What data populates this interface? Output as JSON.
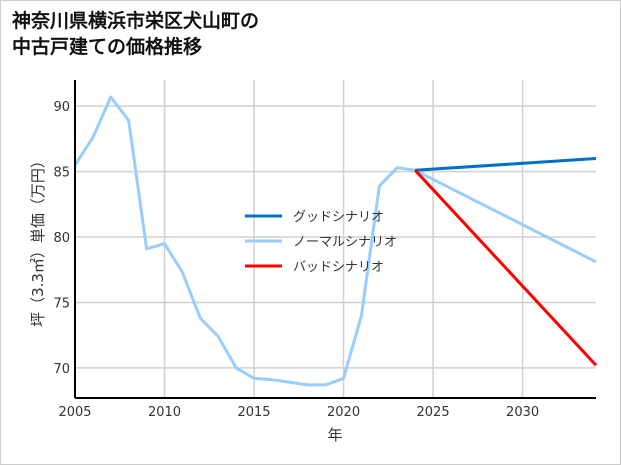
{
  "chart_data": {
    "type": "line",
    "title": "神奈川県横浜市栄区犬山町の\n中古戸建ての価格推移",
    "xlabel": "年",
    "ylabel": "坪（3.3㎡）単価（万円）",
    "xlim": [
      2005,
      2034.1
    ],
    "ylim": [
      67.7,
      92.0
    ],
    "xticks": [
      2005,
      2010,
      2015,
      2020,
      2025,
      2030
    ],
    "yticks": [
      70,
      75,
      80,
      85,
      90
    ],
    "grid": true,
    "legend_position": "center",
    "series": [
      {
        "name": "グッドシナリオ",
        "color": "#0070C8",
        "x": [
          2024,
          2034.1
        ],
        "y": [
          85.1,
          86.0
        ]
      },
      {
        "name": "ノーマルシナリオ",
        "color": "#99CCFF",
        "x": [
          2005,
          2006,
          2007,
          2008,
          2009,
          2010,
          2011,
          2012,
          2013,
          2014,
          2015,
          2016,
          2017,
          2018,
          2019,
          2020,
          2021,
          2022,
          2023,
          2024,
          2034.1
        ],
        "y": [
          85.5,
          87.6,
          90.7,
          88.9,
          79.1,
          79.5,
          77.3,
          73.8,
          72.4,
          70.0,
          69.2,
          69.1,
          68.9,
          68.7,
          68.7,
          69.2,
          74.0,
          83.9,
          85.3,
          85.1,
          78.1
        ]
      },
      {
        "name": "バッドシナリオ",
        "color": "#FF0000",
        "x": [
          2024,
          2034.1
        ],
        "y": [
          85.1,
          70.2
        ]
      }
    ]
  }
}
